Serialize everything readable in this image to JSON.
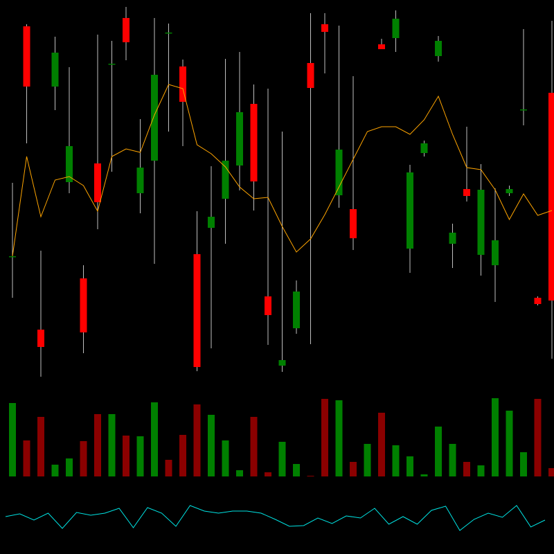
{
  "chart_data": {
    "type": "candlestick",
    "colors": {
      "up": "#008000",
      "down": "#ff0000",
      "up_volume": "#008000",
      "down_volume": "#8b0000",
      "wick": "#c0c0c0",
      "moving_average": "#ffa500",
      "indicator": "#00e5e5",
      "background": "#000000"
    },
    "price_range": [
      0,
      560
    ],
    "candles": [
      {
        "o": 190,
        "h": 296,
        "l": 130,
        "c": 190
      },
      {
        "o": 522,
        "h": 525,
        "l": 353,
        "c": 435
      },
      {
        "o": 84,
        "h": 198,
        "l": 16,
        "c": 59
      },
      {
        "o": 435,
        "h": 507,
        "l": 401,
        "c": 484
      },
      {
        "o": 297,
        "h": 463,
        "l": 281,
        "c": 349
      },
      {
        "o": 158,
        "h": 177,
        "l": 50,
        "c": 80
      },
      {
        "o": 324,
        "h": 510,
        "l": 229,
        "c": 268
      },
      {
        "o": 468,
        "h": 501,
        "l": 312,
        "c": 468
      },
      {
        "o": 534,
        "h": 550,
        "l": 473,
        "c": 499
      },
      {
        "o": 281,
        "h": 388,
        "l": 252,
        "c": 318
      },
      {
        "o": 328,
        "h": 534,
        "l": 179,
        "c": 452
      },
      {
        "o": 513,
        "h": 526,
        "l": 370,
        "c": 513
      },
      {
        "o": 464,
        "h": 474,
        "l": 349,
        "c": 413
      },
      {
        "o": 193,
        "h": 255,
        "l": 24,
        "c": 30
      },
      {
        "o": 231,
        "h": 320,
        "l": 57,
        "c": 247
      },
      {
        "o": 273,
        "h": 475,
        "l": 208,
        "c": 328
      },
      {
        "o": 321,
        "h": 485,
        "l": 285,
        "c": 398
      },
      {
        "o": 410,
        "h": 438,
        "l": 256,
        "c": 298
      },
      {
        "o": 132,
        "h": 432,
        "l": 62,
        "c": 105
      },
      {
        "o": 32,
        "h": 370,
        "l": 23,
        "c": 40
      },
      {
        "o": 86,
        "h": 155,
        "l": 78,
        "c": 139
      },
      {
        "o": 469,
        "h": 541,
        "l": 63,
        "c": 433
      },
      {
        "o": 525,
        "h": 541,
        "l": 454,
        "c": 514
      },
      {
        "o": 278,
        "h": 523,
        "l": 260,
        "c": 344
      },
      {
        "o": 258,
        "h": 450,
        "l": 199,
        "c": 216
      },
      null,
      {
        "o": 496,
        "h": 504,
        "l": 489,
        "c": 489
      },
      {
        "o": 505,
        "h": 545,
        "l": 485,
        "c": 533
      },
      {
        "o": 201,
        "h": 322,
        "l": 166,
        "c": 311
      },
      {
        "o": 339,
        "h": 357,
        "l": 334,
        "c": 353
      },
      {
        "o": 479,
        "h": 508,
        "l": 471,
        "c": 501
      },
      {
        "o": 208,
        "h": 237,
        "l": 173,
        "c": 224
      },
      {
        "o": 287,
        "h": 377,
        "l": 269,
        "c": 277
      },
      {
        "o": 192,
        "h": 323,
        "l": 162,
        "c": 286
      },
      {
        "o": 177,
        "h": 288,
        "l": 124,
        "c": 213
      },
      {
        "o": 281,
        "h": 292,
        "l": 277,
        "c": 287
      },
      {
        "o": 402,
        "h": 518,
        "l": 379,
        "c": 402
      },
      {
        "o": 130,
        "h": 132,
        "l": 119,
        "c": 121
      },
      {
        "o": 426,
        "h": 530,
        "l": 42,
        "c": 126
      }
    ],
    "moving_average": [
      190,
      334,
      247,
      300,
      305,
      292,
      255,
      334,
      345,
      340,
      394,
      438,
      432,
      351,
      338,
      319,
      290,
      273,
      275,
      233,
      196,
      215,
      250,
      290,
      330,
      370,
      377,
      377,
      366,
      387,
      421,
      366,
      318,
      315,
      286,
      243,
      280,
      249,
      256
    ],
    "volume": [
      106,
      52,
      86,
      17,
      26,
      51,
      90,
      90,
      59,
      58,
      107,
      24,
      60,
      104,
      89,
      52,
      9,
      86,
      6,
      50,
      18,
      1,
      112,
      110,
      21,
      47,
      92,
      45,
      29,
      3,
      72,
      47,
      21,
      16,
      113,
      95,
      35,
      112,
      12
    ],
    "volume_up": [
      1,
      0,
      0,
      1,
      1,
      0,
      0,
      1,
      0,
      1,
      1,
      0,
      0,
      0,
      1,
      1,
      1,
      0,
      0,
      1,
      1,
      0,
      0,
      1,
      0,
      1,
      0,
      1,
      1,
      1,
      1,
      1,
      0,
      1,
      1,
      1,
      1,
      0,
      0
    ],
    "indicator": [
      54,
      58,
      49,
      59,
      37,
      60,
      56,
      59,
      66,
      38,
      67,
      59,
      40,
      70,
      62,
      59,
      62,
      62,
      59,
      50,
      40,
      41,
      52,
      44,
      55,
      52,
      66,
      43,
      54,
      43,
      63,
      69,
      34,
      50,
      59,
      53,
      70,
      39,
      49
    ],
    "grid": false
  }
}
